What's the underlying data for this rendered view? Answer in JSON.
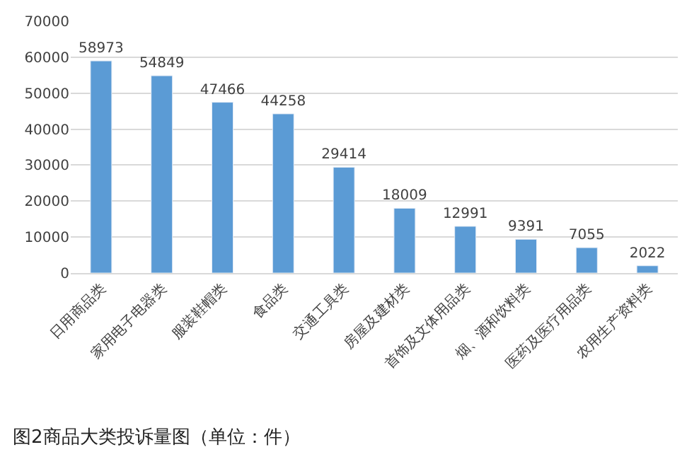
{
  "chart_data": {
    "type": "bar",
    "categories": [
      "日用商品类",
      "家用电子电器类",
      "服装鞋帽类",
      "食品类",
      "交通工具类",
      "房屋及建材类",
      "首饰及文体用品类",
      "烟、酒和饮料类",
      "医药及医疗用品类",
      "农用生产资料类"
    ],
    "values": [
      58973,
      54849,
      47466,
      44258,
      29414,
      18009,
      12991,
      9391,
      7055,
      2022
    ],
    "color": "#5b9bd5",
    "data_labels": true,
    "grid": "y",
    "legend": false,
    "ylim": [
      0,
      70000
    ],
    "yticks": [
      0,
      10000,
      20000,
      30000,
      40000,
      50000,
      60000,
      70000
    ],
    "annotations": [
      "图2商品大类投诉量图（单位：件）"
    ]
  }
}
